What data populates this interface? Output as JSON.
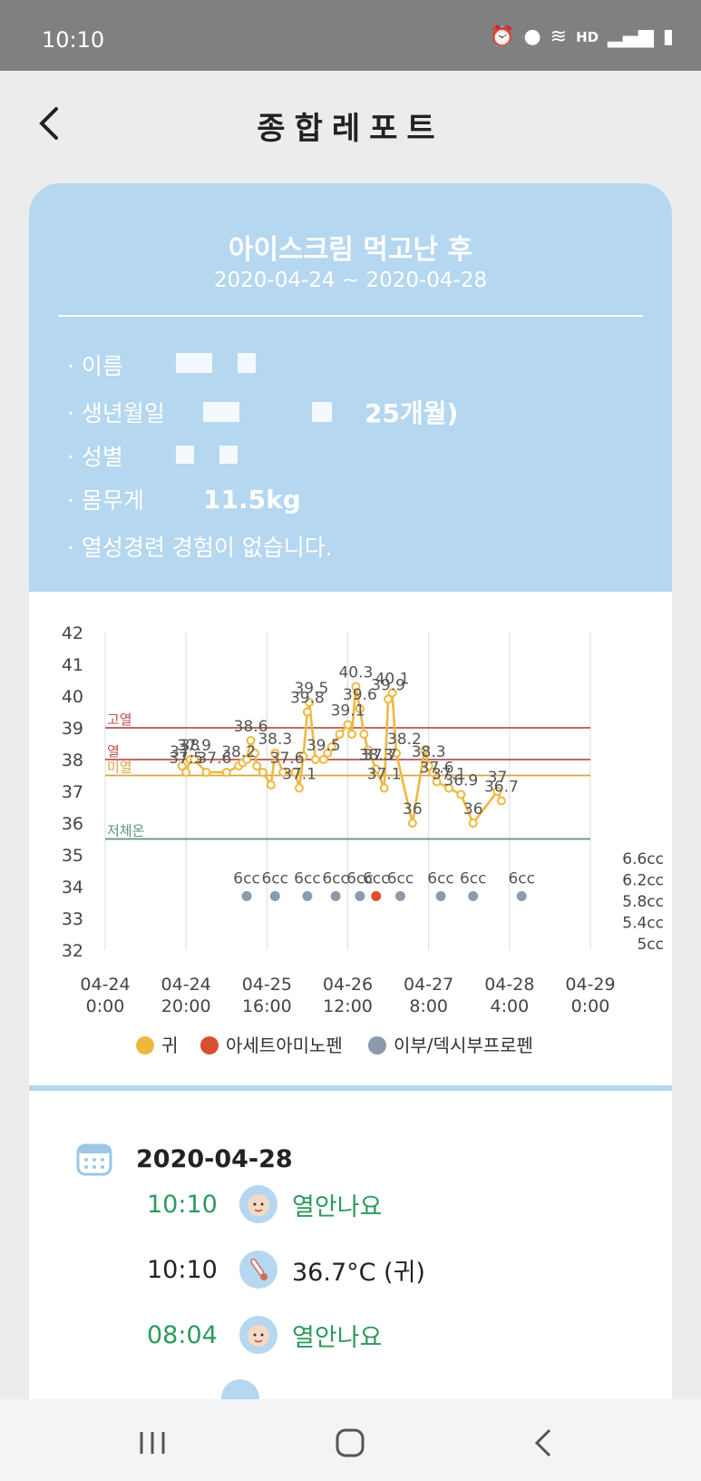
{
  "status": {
    "time": "10:10",
    "hd": "HD"
  },
  "header": {
    "title": "종합레포트"
  },
  "report": {
    "title": "아이스크림 먹고난 후",
    "range": "2020-04-24 ~ 2020-04-28",
    "info": [
      {
        "label": "이름",
        "value": ""
      },
      {
        "label": "생년월일",
        "value": "25개월)"
      },
      {
        "label": "성별",
        "value": ""
      },
      {
        "label": "몸무게",
        "value": "11.5kg"
      }
    ],
    "note": "열성경련 경험이 없습니다."
  },
  "chart_data": {
    "type": "line",
    "y_ticks": [
      "42",
      "41",
      "40",
      "39",
      "38",
      "37",
      "36",
      "35",
      "34",
      "33",
      "32"
    ],
    "ylim": [
      32,
      42
    ],
    "x_ticks": [
      {
        "d": "04-24",
        "t": "0:00"
      },
      {
        "d": "04-24",
        "t": "20:00"
      },
      {
        "d": "04-25",
        "t": "16:00"
      },
      {
        "d": "04-26",
        "t": "12:00"
      },
      {
        "d": "04-27",
        "t": "8:00"
      },
      {
        "d": "04-28",
        "t": "4:00"
      },
      {
        "d": "04-29",
        "t": "0:00"
      }
    ],
    "xlim_hours": [
      0,
      120
    ],
    "ref_lines": [
      {
        "label": "고열",
        "value": 39,
        "color": "#b85450"
      },
      {
        "label": "열",
        "value": 38,
        "color": "#b85450"
      },
      {
        "label": "미열",
        "value": 37.5,
        "color": "#d9a441"
      },
      {
        "label": "저체온",
        "value": 35.5,
        "color": "#5b8f8a"
      }
    ],
    "right_ticks": [
      "6.6cc",
      "6.2cc",
      "5.8cc",
      "5.4cc",
      "5cc"
    ],
    "series": [
      {
        "name": "귀",
        "color": "#f0b73f",
        "points": [
          [
            19,
            37.8
          ],
          [
            20,
            37.6
          ],
          [
            21,
            38
          ],
          [
            22,
            38
          ],
          [
            25,
            37.6
          ],
          [
            30,
            37.6
          ],
          [
            33,
            37.8
          ],
          [
            34,
            37.9
          ],
          [
            35,
            38
          ],
          [
            36,
            38.6
          ],
          [
            37,
            38.2
          ],
          [
            37.5,
            37.8
          ],
          [
            39,
            37.6
          ],
          [
            41,
            37.2
          ],
          [
            42,
            38.2
          ],
          [
            44,
            37.6
          ],
          [
            47,
            37.6
          ],
          [
            48,
            37.1
          ],
          [
            49,
            38.1
          ],
          [
            50,
            39.5
          ],
          [
            50.5,
            39.8
          ],
          [
            52,
            38
          ],
          [
            54,
            38
          ],
          [
            55,
            38.2
          ],
          [
            56,
            38.4
          ],
          [
            58,
            38.8
          ],
          [
            60,
            39.1
          ],
          [
            61,
            38.8
          ],
          [
            62,
            40.3
          ],
          [
            63,
            39.6
          ],
          [
            64,
            38.8
          ],
          [
            65,
            38.3
          ],
          [
            67,
            37.7
          ],
          [
            69,
            37.1
          ],
          [
            70,
            39.9
          ],
          [
            71,
            40.1
          ],
          [
            72,
            38.2
          ],
          [
            76,
            36
          ],
          [
            79,
            38.3
          ],
          [
            80,
            37.8
          ],
          [
            81,
            37.6
          ],
          [
            82,
            37.3
          ],
          [
            85,
            37.1
          ],
          [
            88,
            36.9
          ],
          [
            91,
            36
          ],
          [
            97,
            37
          ],
          [
            98,
            36.7
          ]
        ],
        "labels": [
          [
            19,
            "37."
          ],
          [
            20,
            "37.5"
          ],
          [
            21,
            "38"
          ],
          [
            22,
            "37.9"
          ],
          [
            27,
            "37.6"
          ],
          [
            33,
            "38.2"
          ],
          [
            36,
            "38.6"
          ],
          [
            42,
            "38.3"
          ],
          [
            45,
            "37.6"
          ],
          [
            48,
            "37.1"
          ],
          [
            50,
            "39.8"
          ],
          [
            51,
            "39.5"
          ],
          [
            54,
            "39.5"
          ],
          [
            60,
            "39.1"
          ],
          [
            62,
            "40.3"
          ],
          [
            63,
            "39.6"
          ],
          [
            67,
            "38.3"
          ],
          [
            68,
            "37.7"
          ],
          [
            69,
            "37.1"
          ],
          [
            70,
            "39.9"
          ],
          [
            71,
            "40.1"
          ],
          [
            74,
            "38.2"
          ],
          [
            76,
            "36"
          ],
          [
            80,
            "38.3"
          ],
          [
            82,
            "37.6"
          ],
          [
            85,
            "37.1"
          ],
          [
            88,
            "36.9"
          ],
          [
            91,
            "36"
          ],
          [
            97,
            "37"
          ],
          [
            98,
            "36.7"
          ]
        ]
      },
      {
        "name": "아세트아미노펜",
        "color": "#d9502f",
        "points": [
          [
            67,
            33.7
          ]
        ],
        "labels": [
          [
            67,
            "6cc"
          ]
        ]
      },
      {
        "name": "이부/덱시부프로펜",
        "color": "#8a9bac",
        "points": [
          [
            35,
            33.7
          ],
          [
            42,
            33.7
          ],
          [
            50,
            33.7
          ],
          [
            57,
            33.7
          ],
          [
            63,
            33.7
          ],
          [
            73,
            33.7
          ],
          [
            83,
            33.7
          ],
          [
            91,
            33.7
          ],
          [
            103,
            33.7
          ]
        ],
        "labels": [
          [
            35,
            "6cc"
          ],
          [
            42,
            "6cc"
          ],
          [
            50,
            "6cc"
          ],
          [
            57,
            "6cc"
          ],
          [
            63,
            "6cc"
          ],
          [
            73,
            "6cc"
          ],
          [
            83,
            "6cc"
          ],
          [
            91,
            "6cc"
          ],
          [
            103,
            "6cc"
          ]
        ]
      }
    ]
  },
  "log": {
    "date": "2020-04-28",
    "entries": [
      {
        "time": "10:10",
        "text": "열안나요",
        "type": "status"
      },
      {
        "time": "10:10",
        "text": "36.7°C (귀)",
        "type": "temp"
      },
      {
        "time": "08:04",
        "text": "열안나요",
        "type": "status"
      }
    ]
  }
}
